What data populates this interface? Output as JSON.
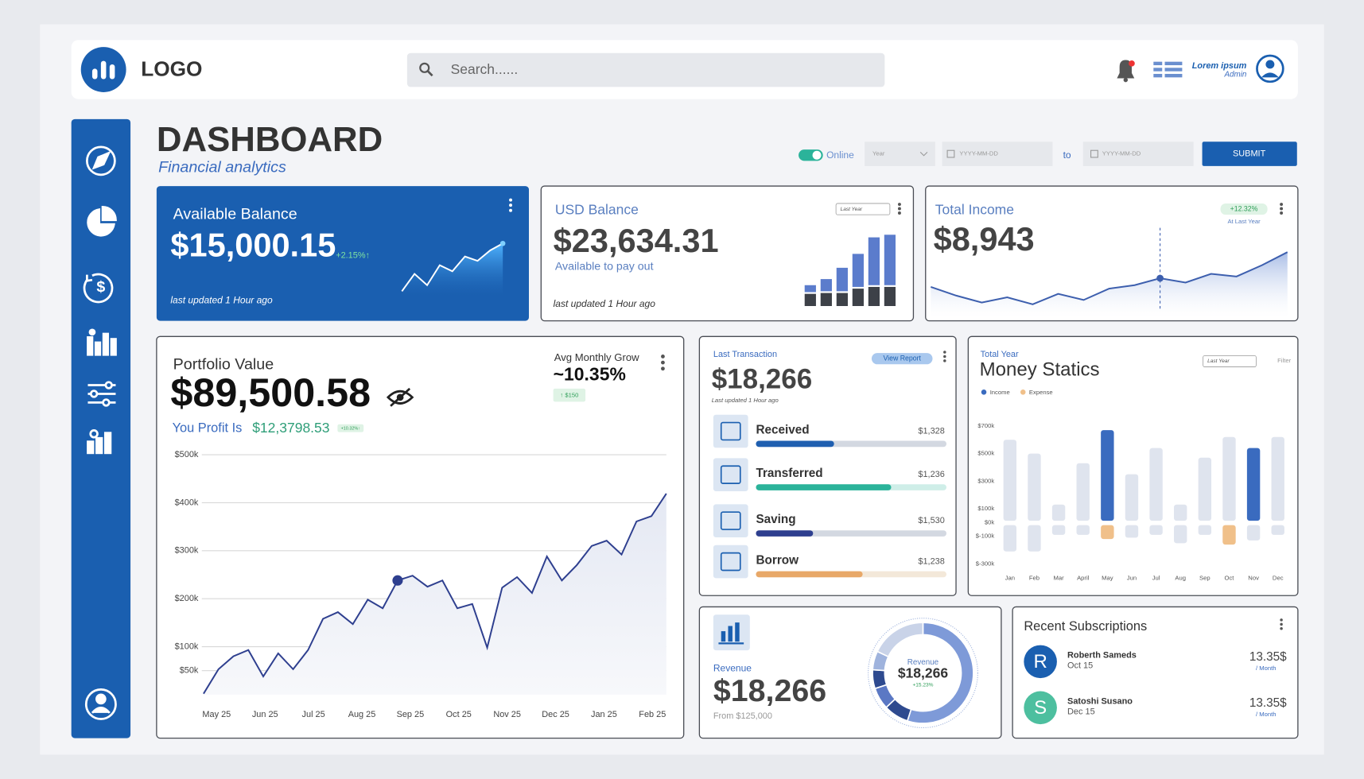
{
  "header": {
    "logo": "LOGO",
    "search_placeholder": "Search......",
    "user_name": "Lorem ipsum",
    "user_role": "Admin"
  },
  "page": {
    "title": "DASHBOARD",
    "subtitle": "Financial analytics"
  },
  "filters": {
    "toggle": "Online",
    "period": "Year",
    "date_from": "YYYY-MM-DD",
    "to": "to",
    "date_to": "YYYY-MM-DD",
    "submit": "SUBMIT"
  },
  "available_balance": {
    "title": "Available Balance",
    "amount": "$15,000.15",
    "change": "+2.15%↑",
    "note": "last updated 1 Hour ago",
    "sparkline": {
      "type": "line",
      "values": [
        0,
        20,
        7,
        30,
        23,
        40,
        35,
        47,
        55
      ]
    }
  },
  "usd_balance": {
    "title": "USD Balance",
    "amount": "$23,634.31",
    "caption": "Available to pay out",
    "period": "Last Year",
    "note": "last updated 1 Hour ago",
    "bars": {
      "type": "bar",
      "series": [
        {
          "color": "#3d4148",
          "values": [
            14,
            15,
            15,
            20,
            22,
            22
          ]
        },
        {
          "color": "#5b7ccc",
          "values": [
            8,
            14,
            27,
            38,
            55,
            58
          ]
        }
      ]
    }
  },
  "total_income": {
    "title": "Total Income",
    "amount": "$8,943",
    "change": "+12.32%",
    "caption": "At Last Year",
    "line": {
      "type": "line",
      "color": "#3d5fae",
      "values": [
        30,
        20,
        12,
        18,
        10,
        22,
        15,
        28,
        32,
        40,
        35,
        45,
        42,
        55,
        70
      ]
    }
  },
  "portfolio": {
    "title": "Portfolio Value",
    "amount": "$89,500.58",
    "profit_label": "You Profit Is",
    "profit": "$12,3798.53",
    "profit_change": "+10.32%↑",
    "avg_label": "Avg Monthly Grow",
    "avg_value": "~10.35%",
    "avg_change": "↑ $150",
    "chart": {
      "type": "line",
      "color": "#2e3f8f",
      "grid": true,
      "xlabels": [
        "May 25",
        "Jun 25",
        "Jul 25",
        "Aug 25",
        "Sep 25",
        "Oct 25",
        "Nov 25",
        "Dec 25",
        "Jan 25",
        "Feb 25"
      ],
      "values": [
        2,
        53,
        80,
        93,
        38,
        86,
        53,
        93,
        158,
        172,
        147,
        198,
        180,
        238,
        248,
        225,
        238,
        180,
        189,
        98,
        223,
        245,
        212,
        288,
        238,
        270,
        310,
        321,
        292,
        361,
        372,
        419
      ],
      "ylim": [
        0,
        520
      ],
      "yticks": [
        {
          "value": 500,
          "label": "$500k"
        },
        {
          "value": 400,
          "label": "$400k"
        },
        {
          "value": 300,
          "label": "$300k"
        },
        {
          "value": 200,
          "label": "$200k"
        },
        {
          "value": 100,
          "label": "$100k"
        },
        {
          "value": 50,
          "label": "$50k"
        }
      ]
    }
  },
  "last_transaction": {
    "label": "Last Transaction",
    "button": "View Report",
    "amount": "$18,266",
    "note": "Last updated 1 Hour ago",
    "items": [
      {
        "name": "Received",
        "amount": "$1,328",
        "progress": 41,
        "color": "#1f5fb0",
        "track": "#d3d8e1"
      },
      {
        "name": "Transferred",
        "amount": "$1,236",
        "progress": 71,
        "color": "#2bb39a",
        "track": "#cfeee8"
      },
      {
        "name": "Saving",
        "amount": "$1,530",
        "progress": 30,
        "color": "#2e3f8f",
        "track": "#d3d8e1"
      },
      {
        "name": "Borrow",
        "amount": "$1,238",
        "progress": 56,
        "color": "#e8a868",
        "track": "#f3e8d9"
      }
    ]
  },
  "money_statics": {
    "label": "Total Year",
    "title": "Money Statics",
    "period": "Last Year",
    "filter": "Filter",
    "chart": {
      "type": "bar",
      "categories": [
        "Jan",
        "Feb",
        "Mar",
        "April",
        "May",
        "Jun",
        "Jul",
        "Aug",
        "Sep",
        "Oct",
        "Nov",
        "Dec"
      ],
      "series": [
        {
          "name": "Income",
          "color": "#3a6bbf",
          "values": [
            600,
            500,
            130,
            430,
            670,
            350,
            540,
            130,
            470,
            620,
            540,
            620
          ],
          "colors": [
            "#dfe4ee",
            "#dfe4ee",
            "#dfe4ee",
            "#dfe4ee",
            "#3a6bbf",
            "#dfe4ee",
            "#dfe4ee",
            "#dfe4ee",
            "#dfe4ee",
            "#dfe4ee",
            "#3a6bbf",
            "#dfe4ee"
          ]
        },
        {
          "name": "Expense",
          "color": "#f0c08a",
          "values": [
            -210,
            -210,
            -90,
            -90,
            -120,
            -110,
            -90,
            -150,
            -90,
            -160,
            -130,
            -90
          ],
          "colors": [
            "#dfe4ee",
            "#dfe4ee",
            "#dfe4ee",
            "#dfe4ee",
            "#f0c08a",
            "#dfe4ee",
            "#dfe4ee",
            "#dfe4ee",
            "#dfe4ee",
            "#f0c08a",
            "#dfe4ee",
            "#dfe4ee"
          ]
        }
      ],
      "ylim": [
        -350,
        750
      ],
      "yticks": [
        {
          "value": 700,
          "label": "$700k"
        },
        {
          "value": 500,
          "label": "$500k"
        },
        {
          "value": 300,
          "label": "$300k"
        },
        {
          "value": 100,
          "label": "$100k"
        },
        {
          "value": 0,
          "label": "$0k"
        },
        {
          "value": -100,
          "label": "$-100k"
        },
        {
          "value": -300,
          "label": "$-300k"
        }
      ]
    }
  },
  "revenue": {
    "label": "Revenue",
    "amount": "$18,266",
    "note": "From $125,000",
    "donut": {
      "type": "pie",
      "label": "Revenue",
      "amount": "$18,266",
      "change": "+15.23%",
      "values": [
        55,
        8,
        7,
        6,
        6,
        18
      ],
      "colors": [
        "#7e9ad8",
        "#2e4a8f",
        "#5b78c4",
        "#2e4a8f",
        "#9fb3dd",
        "#c9d3e8"
      ]
    }
  },
  "subscriptions": {
    "title": "Recent Subscriptions",
    "items": [
      {
        "initial": "R",
        "name": "Roberth Sameds",
        "date": "Oct 15",
        "price": "13.35$",
        "period": "/ Month",
        "color": "#1a5fb0"
      },
      {
        "initial": "S",
        "name": "Satoshi Susano",
        "date": "Dec 15",
        "price": "13.35$",
        "period": "/ Month",
        "color": "#4dbf9f"
      }
    ]
  }
}
